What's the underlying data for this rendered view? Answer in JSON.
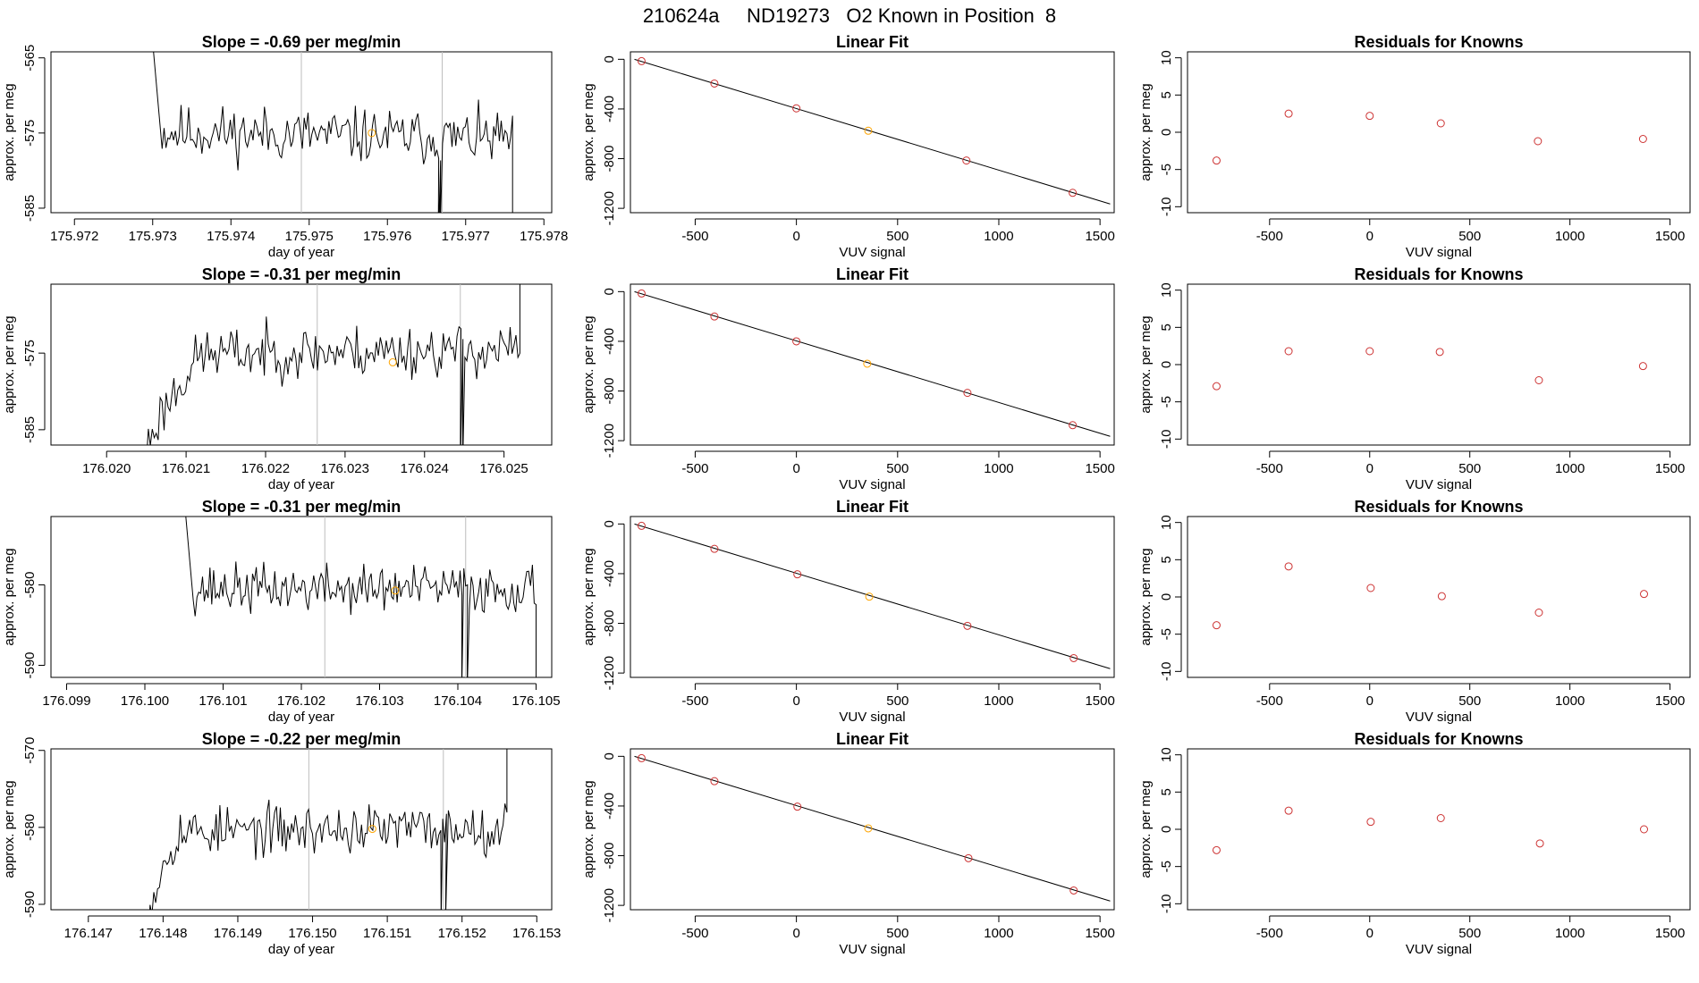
{
  "figure": {
    "title": "210624a     ND19273   O2 Known in Position  8"
  },
  "colors": {
    "trace": "#000000",
    "marker": "#ffa500",
    "fit_point": "#cd3333",
    "known_point": "#ffa500",
    "residual_point": "#cd3333",
    "vline": "#bebebe"
  },
  "chart_data": [
    {
      "type": "line",
      "row": 1,
      "col": 1,
      "title": "Slope =  -0.69  per meg/min",
      "xlabel": "day of year",
      "ylabel": "approx. per meg",
      "xlim": [
        175.9717,
        175.9781
      ],
      "ylim": [
        -585.6,
        -564.2
      ],
      "xticks": [
        175.972,
        175.973,
        175.974,
        175.975,
        175.976,
        175.977,
        175.978
      ],
      "xtick_labels": [
        "175.972",
        "175.973",
        "175.974",
        "175.975",
        "175.976",
        "175.977",
        "175.978"
      ],
      "yticks": [
        -585,
        -575,
        -565
      ],
      "ytick_labels": [
        "-585",
        "-575",
        "-565"
      ],
      "vlines": [
        175.9749,
        175.9767
      ],
      "trace": {
        "x_start": 175.973,
        "x_end": 175.9776,
        "seed": 11,
        "pre_x": 175.9731,
        "pre_from": -563.0,
        "base_start": -574.8,
        "base_end": -575.8,
        "amp": 1.8,
        "dips": [
          [
            175.97665,
            -590.0
          ],
          [
            175.97667,
            -590.0
          ]
        ],
        "post_x": 175.9775,
        "post_to": -590.0
      },
      "marker": {
        "x": 175.9758,
        "y": -575.0
      }
    },
    {
      "type": "scatter",
      "row": 1,
      "col": 2,
      "title": "Linear Fit",
      "xlabel": "VUV signal",
      "ylabel": "approx. per meg",
      "xlim": [
        -820,
        1570
      ],
      "ylim": [
        -1235,
        60
      ],
      "xticks": [
        -500,
        0,
        500,
        1000,
        1500
      ],
      "xtick_labels": [
        "-500",
        "0",
        "500",
        "1000",
        "1500"
      ],
      "yticks": [
        -1200,
        -800,
        -400,
        0
      ],
      "ytick_labels": [
        "-1200",
        "-800",
        "-400",
        "0"
      ],
      "line": {
        "x": [
          -800,
          1550
        ],
        "y": [
          0,
          -1165
        ]
      },
      "points": {
        "x": [
          -765,
          -405,
          0,
          355,
          840,
          1365
        ],
        "y": [
          -15,
          -195,
          -395,
          -575,
          -815,
          -1075
        ]
      },
      "highlight_index": 3
    },
    {
      "type": "scatter",
      "row": 1,
      "col": 3,
      "title": "Residuals for Knowns",
      "xlabel": "VUV signal",
      "ylabel": "approx. per meg",
      "xlim": [
        -910,
        1600
      ],
      "ylim": [
        -10.8,
        10.8
      ],
      "xticks": [
        -500,
        0,
        500,
        1000,
        1500
      ],
      "xtick_labels": [
        "-500",
        "0",
        "500",
        "1000",
        "1500"
      ],
      "yticks": [
        -10,
        -5,
        0,
        5,
        10
      ],
      "ytick_labels": [
        "-10",
        "-5",
        "0",
        "5",
        "10"
      ],
      "points": {
        "x": [
          -765,
          -405,
          0,
          355,
          840,
          1365
        ],
        "y": [
          -3.8,
          2.5,
          2.2,
          1.2,
          -1.2,
          -0.9
        ]
      }
    },
    {
      "type": "line",
      "row": 2,
      "col": 1,
      "title": "Slope =  -0.31  per meg/min",
      "xlabel": "day of year",
      "ylabel": "approx. per meg",
      "xlim": [
        176.0193,
        176.0256
      ],
      "ylim": [
        -587.0,
        -566.0
      ],
      "xticks": [
        176.02,
        176.021,
        176.022,
        176.023,
        176.024,
        176.025
      ],
      "xtick_labels": [
        "176.020",
        "176.021",
        "176.022",
        "176.023",
        "176.024",
        "176.025"
      ],
      "yticks": [
        -585,
        -575
      ],
      "ytick_labels": [
        "-585",
        "-575"
      ],
      "vlines": [
        176.02265,
        176.02445
      ],
      "trace": {
        "x_start": 176.0205,
        "x_end": 176.0252,
        "seed": 23,
        "rise_to": 176.0212,
        "rise_from": -588.0,
        "base_start": -575.2,
        "base_end": -574.5,
        "amp": 1.7,
        "dips": [
          [
            176.02445,
            -590.0
          ],
          [
            176.02448,
            -590.0
          ]
        ],
        "post_x": 176.0251,
        "post_to": -563.0
      },
      "marker": {
        "x": 176.0236,
        "y": -576.2
      }
    },
    {
      "type": "scatter",
      "row": 2,
      "col": 2,
      "title": "Linear Fit",
      "xlabel": "VUV signal",
      "ylabel": "approx. per meg",
      "xlim": [
        -820,
        1570
      ],
      "ylim": [
        -1235,
        60
      ],
      "xticks": [
        -500,
        0,
        500,
        1000,
        1500
      ],
      "xtick_labels": [
        "-500",
        "0",
        "500",
        "1000",
        "1500"
      ],
      "yticks": [
        -1200,
        -800,
        -400,
        0
      ],
      "ytick_labels": [
        "-1200",
        "-800",
        "-400",
        "0"
      ],
      "line": {
        "x": [
          -800,
          1550
        ],
        "y": [
          0,
          -1165
        ]
      },
      "points": {
        "x": [
          -765,
          -405,
          0,
          350,
          845,
          1365
        ],
        "y": [
          -15,
          -200,
          -400,
          -580,
          -815,
          -1075
        ]
      },
      "highlight_index": 3
    },
    {
      "type": "scatter",
      "row": 2,
      "col": 3,
      "title": "Residuals for Knowns",
      "xlabel": "VUV signal",
      "ylabel": "approx. per meg",
      "xlim": [
        -910,
        1600
      ],
      "ylim": [
        -10.8,
        10.8
      ],
      "xticks": [
        -500,
        0,
        500,
        1000,
        1500
      ],
      "xtick_labels": [
        "-500",
        "0",
        "500",
        "1000",
        "1500"
      ],
      "yticks": [
        -10,
        -5,
        0,
        5,
        10
      ],
      "ytick_labels": [
        "-10",
        "-5",
        "0",
        "5",
        "10"
      ],
      "points": {
        "x": [
          -765,
          -405,
          0,
          350,
          845,
          1365
        ],
        "y": [
          -2.9,
          1.8,
          1.8,
          1.7,
          -2.1,
          -0.2
        ]
      }
    },
    {
      "type": "line",
      "row": 3,
      "col": 1,
      "title": "Slope =  -0.31  per meg/min",
      "xlabel": "day of year",
      "ylabel": "approx. per meg",
      "xlim": [
        176.0988,
        176.1052
      ],
      "ylim": [
        -591.5,
        -571.5
      ],
      "xticks": [
        176.099,
        176.1,
        176.101,
        176.102,
        176.103,
        176.104,
        176.105
      ],
      "xtick_labels": [
        "176.099",
        "176.100",
        "176.101",
        "176.102",
        "176.103",
        "176.104",
        "176.105"
      ],
      "yticks": [
        -590,
        -580
      ],
      "ytick_labels": [
        "-590",
        "-580"
      ],
      "vlines": [
        176.1023,
        176.1041
      ],
      "trace": {
        "x_start": 176.1005,
        "x_end": 176.105,
        "seed": 37,
        "pre_x": 176.1006,
        "pre_from": -569.0,
        "base_start": -580.5,
        "base_end": -580.5,
        "amp": 1.5,
        "dips": [
          [
            176.10405,
            -593.0
          ],
          [
            176.10412,
            -593.0
          ]
        ],
        "post_x": 176.1049,
        "post_to": -593.0
      },
      "marker": {
        "x": 176.1032,
        "y": -580.7
      }
    },
    {
      "type": "scatter",
      "row": 3,
      "col": 2,
      "title": "Linear Fit",
      "xlabel": "VUV signal",
      "ylabel": "approx. per meg",
      "xlim": [
        -820,
        1570
      ],
      "ylim": [
        -1235,
        60
      ],
      "xticks": [
        -500,
        0,
        500,
        1000,
        1500
      ],
      "xtick_labels": [
        "-500",
        "0",
        "500",
        "1000",
        "1500"
      ],
      "yticks": [
        -1200,
        -800,
        -400,
        0
      ],
      "ytick_labels": [
        "-1200",
        "-800",
        "-400",
        "0"
      ],
      "line": {
        "x": [
          -800,
          1550
        ],
        "y": [
          0,
          -1165
        ]
      },
      "points": {
        "x": [
          -765,
          -405,
          5,
          360,
          845,
          1370
        ],
        "y": [
          -15,
          -200,
          -405,
          -585,
          -820,
          -1080
        ]
      },
      "highlight_index": 3
    },
    {
      "type": "scatter",
      "row": 3,
      "col": 3,
      "title": "Residuals for Knowns",
      "xlabel": "VUV signal",
      "ylabel": "approx. per meg",
      "xlim": [
        -910,
        1600
      ],
      "ylim": [
        -10.8,
        10.8
      ],
      "xticks": [
        -500,
        0,
        500,
        1000,
        1500
      ],
      "xtick_labels": [
        "-500",
        "0",
        "500",
        "1000",
        "1500"
      ],
      "yticks": [
        -10,
        -5,
        0,
        5,
        10
      ],
      "ytick_labels": [
        "-10",
        "-5",
        "0",
        "5",
        "10"
      ],
      "points": {
        "x": [
          -765,
          -405,
          5,
          360,
          845,
          1370
        ],
        "y": [
          -3.8,
          4.1,
          1.2,
          0.1,
          -2.1,
          0.4
        ]
      }
    },
    {
      "type": "line",
      "row": 4,
      "col": 1,
      "title": "Slope =  -0.22  per meg/min",
      "xlabel": "day of year",
      "ylabel": "approx. per meg",
      "xlim": [
        176.1465,
        176.1532
      ],
      "ylim": [
        -590.7,
        -569.8
      ],
      "xticks": [
        176.147,
        176.148,
        176.149,
        176.15,
        176.151,
        176.152,
        176.153
      ],
      "xtick_labels": [
        "176.147",
        "176.148",
        "176.149",
        "176.150",
        "176.151",
        "176.152",
        "176.153"
      ],
      "yticks": [
        -590,
        -580,
        -570
      ],
      "ytick_labels": [
        "-590",
        "-580",
        "-570"
      ],
      "vlines": [
        176.14995,
        176.15175
      ],
      "trace": {
        "x_start": 176.1478,
        "x_end": 176.1526,
        "seed": 53,
        "rise_to": 176.1482,
        "rise_from": -592.0,
        "base_start": -580.6,
        "base_end": -580.0,
        "amp": 1.6,
        "dips": [
          [
            176.15172,
            -592.0
          ],
          [
            176.15178,
            -592.0
          ]
        ],
        "post_x": 176.1525,
        "post_to": -566.0
      },
      "marker": {
        "x": 176.1508,
        "y": -580.2
      }
    },
    {
      "type": "scatter",
      "row": 4,
      "col": 2,
      "title": "Linear Fit",
      "xlabel": "VUV signal",
      "ylabel": "approx. per meg",
      "xlim": [
        -820,
        1570
      ],
      "ylim": [
        -1235,
        60
      ],
      "xticks": [
        -500,
        0,
        500,
        1000,
        1500
      ],
      "xtick_labels": [
        "-500",
        "0",
        "500",
        "1000",
        "1500"
      ],
      "yticks": [
        -1200,
        -800,
        -400,
        0
      ],
      "ytick_labels": [
        "-1200",
        "-800",
        "-400",
        "0"
      ],
      "line": {
        "x": [
          -800,
          1550
        ],
        "y": [
          0,
          -1165
        ]
      },
      "points": {
        "x": [
          -765,
          -405,
          5,
          355,
          850,
          1370
        ],
        "y": [
          -15,
          -200,
          -405,
          -580,
          -820,
          -1080
        ]
      },
      "highlight_index": 3
    },
    {
      "type": "scatter",
      "row": 4,
      "col": 3,
      "title": "Residuals for Knowns",
      "xlabel": "VUV signal",
      "ylabel": "approx. per meg",
      "xlim": [
        -910,
        1600
      ],
      "ylim": [
        -10.8,
        10.8
      ],
      "xticks": [
        -500,
        0,
        500,
        1000,
        1500
      ],
      "xtick_labels": [
        "-500",
        "0",
        "500",
        "1000",
        "1500"
      ],
      "yticks": [
        -10,
        -5,
        0,
        5,
        10
      ],
      "ytick_labels": [
        "-10",
        "-5",
        "0",
        "5",
        "10"
      ],
      "points": {
        "x": [
          -765,
          -405,
          5,
          355,
          850,
          1370
        ],
        "y": [
          -2.8,
          2.5,
          1.0,
          1.5,
          -1.9,
          0.0
        ]
      }
    }
  ]
}
